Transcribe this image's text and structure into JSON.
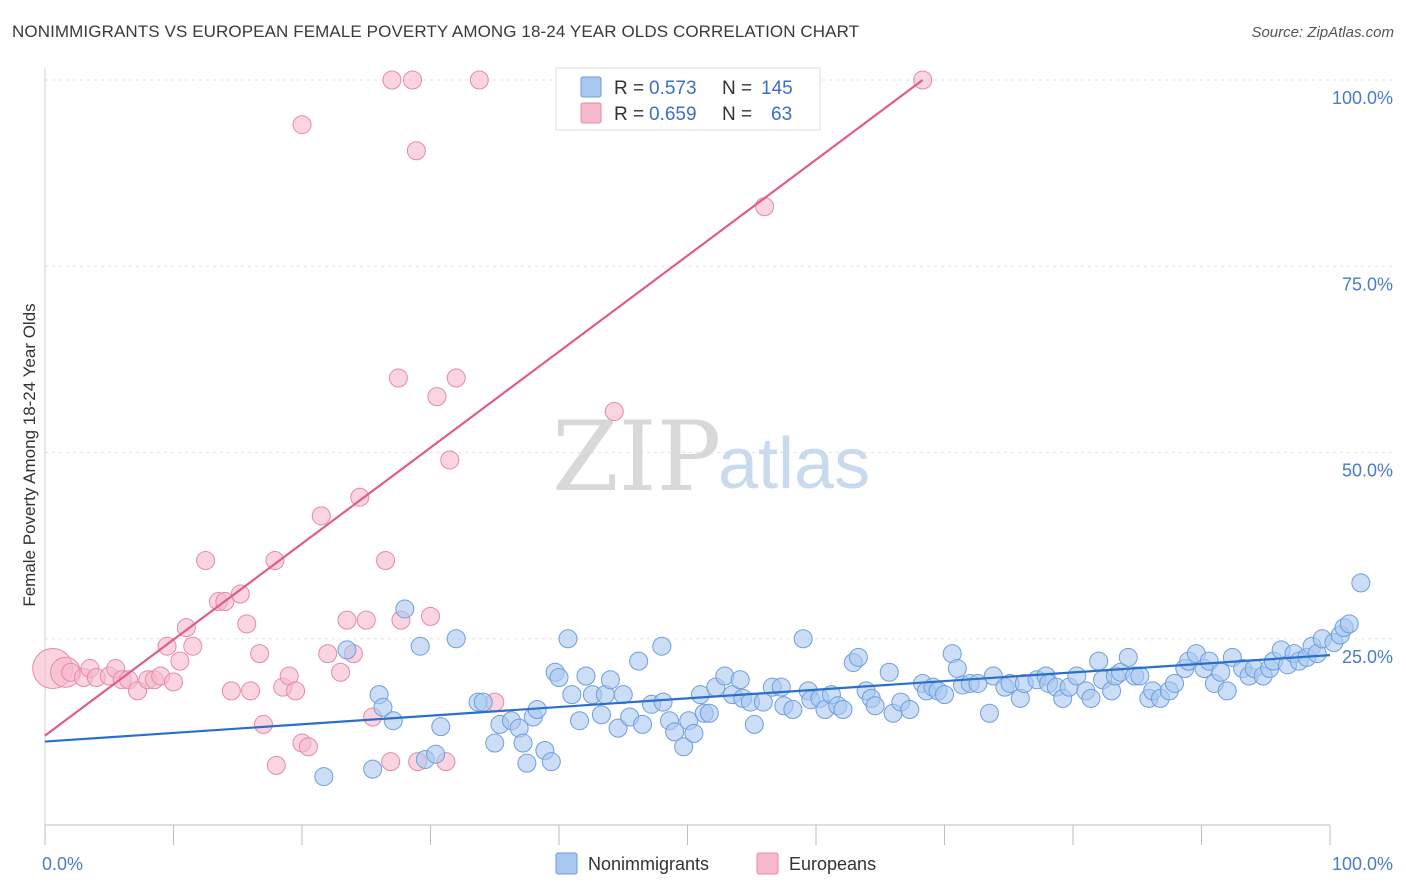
{
  "title": "NONIMMIGRANTS VS EUROPEAN FEMALE POVERTY AMONG 18-24 YEAR OLDS CORRELATION CHART",
  "source": "Source: ZipAtlas.com",
  "watermark": {
    "zip": "ZIP",
    "atlas": "atlas"
  },
  "legend": {
    "rows": [
      {
        "r_label": "R = ",
        "r_value": "0.573",
        "n_label": "N = ",
        "n_value": "145",
        "color": "#a9c8f0",
        "stroke": "#6f9ede"
      },
      {
        "r_label": "R = ",
        "r_value": "0.659",
        "n_label": "N = ",
        "n_value": "63",
        "color": "#f7b9cc",
        "stroke": "#e48aa8"
      }
    ]
  },
  "bottom_legend": [
    {
      "label": "Nonimmigrants",
      "color": "#a9c8f0",
      "stroke": "#6f9ede"
    },
    {
      "label": "Europeans",
      "color": "#f7b9cc",
      "stroke": "#e48aa8"
    }
  ],
  "chart_data": {
    "type": "scatter",
    "title": "NONIMMIGRANTS VS EUROPEAN FEMALE POVERTY AMONG 18-24 YEAR OLDS CORRELATION CHART",
    "xlabel": "",
    "ylabel": "Female Poverty Among 18-24 Year Olds",
    "xlim": [
      0,
      100
    ],
    "ylim": [
      0,
      100
    ],
    "x_ticks": [
      "0.0%",
      "100.0%"
    ],
    "y_ticks": [
      {
        "value": 25,
        "label": "25.0%"
      },
      {
        "value": 50,
        "label": "50.0%"
      },
      {
        "value": 75,
        "label": "75.0%"
      },
      {
        "value": 100,
        "label": "100.0%"
      }
    ],
    "grid": true,
    "legend_position": "top-center",
    "series": [
      {
        "name": "Nonimmigrants",
        "color": "#a9c8f0",
        "stroke": "#6f9ede",
        "trend": {
          "x": [
            0,
            100
          ],
          "y": [
            11.2,
            22.8
          ],
          "color": "#2a6fcc"
        },
        "points": [
          [
            21.7,
            6.5
          ],
          [
            23.5,
            23.5
          ],
          [
            25.5,
            7.5
          ],
          [
            26,
            17.5
          ],
          [
            26.3,
            15.8
          ],
          [
            27.1,
            14
          ],
          [
            28,
            29
          ],
          [
            29.6,
            8.8
          ],
          [
            29.2,
            24
          ],
          [
            30.4,
            9.5
          ],
          [
            30.8,
            13.2
          ],
          [
            32,
            25
          ],
          [
            33.7,
            16.5
          ],
          [
            34.1,
            16.5
          ],
          [
            35,
            11
          ],
          [
            35.4,
            13.5
          ],
          [
            36.3,
            14
          ],
          [
            36.9,
            13
          ],
          [
            37.2,
            11
          ],
          [
            37.5,
            8.3
          ],
          [
            38,
            14.5
          ],
          [
            38.3,
            15.5
          ],
          [
            38.9,
            10
          ],
          [
            39.4,
            8.5
          ],
          [
            39.7,
            20.5
          ],
          [
            40,
            19.8
          ],
          [
            40.7,
            25
          ],
          [
            41,
            17.5
          ],
          [
            41.6,
            14
          ],
          [
            42.1,
            20
          ],
          [
            42.6,
            17.5
          ],
          [
            43.3,
            14.8
          ],
          [
            43.6,
            17.5
          ],
          [
            44,
            19.5
          ],
          [
            44.6,
            13
          ],
          [
            45,
            17.5
          ],
          [
            45.5,
            14.5
          ],
          [
            46.2,
            22
          ],
          [
            46.5,
            13.5
          ],
          [
            47.2,
            16.2
          ],
          [
            48,
            24
          ],
          [
            48.1,
            16.5
          ],
          [
            48.6,
            14
          ],
          [
            49,
            12.5
          ],
          [
            49.7,
            10.5
          ],
          [
            50.1,
            14
          ],
          [
            50.5,
            12.3
          ],
          [
            51,
            17.5
          ],
          [
            51.3,
            15
          ],
          [
            51.7,
            15
          ],
          [
            52.2,
            18.5
          ],
          [
            52.9,
            20
          ],
          [
            53.5,
            17.5
          ],
          [
            54.1,
            19.5
          ],
          [
            54.3,
            17
          ],
          [
            54.9,
            16.5
          ],
          [
            55.2,
            13.5
          ],
          [
            55.9,
            16.5
          ],
          [
            56.6,
            18.5
          ],
          [
            57.3,
            18.5
          ],
          [
            57.5,
            16
          ],
          [
            58.2,
            15.5
          ],
          [
            59,
            25
          ],
          [
            59.4,
            18
          ],
          [
            59.6,
            16.8
          ],
          [
            60.3,
            17
          ],
          [
            60.7,
            15.5
          ],
          [
            61.2,
            17.5
          ],
          [
            61.7,
            16
          ],
          [
            62.1,
            15.5
          ],
          [
            62.9,
            21.8
          ],
          [
            63.3,
            22.5
          ],
          [
            63.9,
            18
          ],
          [
            64.3,
            17
          ],
          [
            64.6,
            16
          ],
          [
            65.7,
            20.5
          ],
          [
            66,
            15
          ],
          [
            66.6,
            16.5
          ],
          [
            67.3,
            15.5
          ],
          [
            68.3,
            19
          ],
          [
            68.6,
            18
          ],
          [
            69.1,
            18.5
          ],
          [
            69.5,
            18
          ],
          [
            70,
            17.5
          ],
          [
            70.6,
            23
          ],
          [
            71,
            21
          ],
          [
            71.4,
            18.8
          ],
          [
            72,
            19
          ],
          [
            72.6,
            19
          ],
          [
            73.5,
            15
          ],
          [
            73.8,
            20
          ],
          [
            74.7,
            18.5
          ],
          [
            75.1,
            19
          ],
          [
            75.9,
            17
          ],
          [
            76.2,
            19
          ],
          [
            77.2,
            19.5
          ],
          [
            77.9,
            20
          ],
          [
            78.1,
            19
          ],
          [
            78.7,
            18.5
          ],
          [
            79.2,
            17
          ],
          [
            79.7,
            18.5
          ],
          [
            80.3,
            20
          ],
          [
            81,
            18
          ],
          [
            81.4,
            17
          ],
          [
            82,
            22
          ],
          [
            82.3,
            19.5
          ],
          [
            83,
            18
          ],
          [
            83.3,
            20
          ],
          [
            83.7,
            20.5
          ],
          [
            84.3,
            22.5
          ],
          [
            84.8,
            20
          ],
          [
            85.2,
            20
          ],
          [
            85.9,
            17
          ],
          [
            86.2,
            18
          ],
          [
            86.8,
            17
          ],
          [
            87.5,
            18
          ],
          [
            87.9,
            19
          ],
          [
            88.7,
            21
          ],
          [
            89,
            22
          ],
          [
            89.6,
            23
          ],
          [
            90.2,
            21
          ],
          [
            90.6,
            22
          ],
          [
            91,
            19
          ],
          [
            91.5,
            20.5
          ],
          [
            92,
            18
          ],
          [
            92.4,
            22.5
          ],
          [
            93.2,
            21
          ],
          [
            93.7,
            20
          ],
          [
            94.1,
            21
          ],
          [
            94.8,
            20
          ],
          [
            95.3,
            21
          ],
          [
            95.6,
            22
          ],
          [
            96.2,
            23.5
          ],
          [
            96.7,
            21.5
          ],
          [
            97.2,
            23
          ],
          [
            97.6,
            22
          ],
          [
            98.2,
            22.5
          ],
          [
            98.6,
            24
          ],
          [
            99,
            23
          ],
          [
            99.4,
            25
          ],
          [
            100.3,
            24.5
          ],
          [
            100.8,
            25.5
          ],
          [
            101.1,
            26.5
          ],
          [
            101.5,
            27
          ],
          [
            102.4,
            32.5
          ]
        ]
      },
      {
        "name": "Europeans",
        "color": "#f7b9cc",
        "stroke": "#e48aa8",
        "trend": {
          "x": [
            0,
            68.3
          ],
          "y": [
            12,
            100
          ],
          "color": "#e05c8a"
        },
        "points": [
          [
            0.6,
            21
          ],
          [
            1.6,
            20.5
          ],
          [
            2,
            20.5
          ],
          [
            3,
            19.8
          ],
          [
            3.5,
            21
          ],
          [
            4,
            19.8
          ],
          [
            5,
            20
          ],
          [
            5.5,
            21
          ],
          [
            6,
            19.5
          ],
          [
            6.5,
            19.5
          ],
          [
            7.2,
            18
          ],
          [
            8,
            19.5
          ],
          [
            8.5,
            19.5
          ],
          [
            9,
            20
          ],
          [
            9.5,
            24
          ],
          [
            10,
            19.2
          ],
          [
            10.5,
            22
          ],
          [
            11,
            26.5
          ],
          [
            11.5,
            24
          ],
          [
            12.5,
            35.5
          ],
          [
            13.5,
            30
          ],
          [
            14,
            30
          ],
          [
            14.5,
            18
          ],
          [
            15.2,
            31
          ],
          [
            15.7,
            27
          ],
          [
            16,
            18
          ],
          [
            16.7,
            23
          ],
          [
            17,
            13.5
          ],
          [
            17.9,
            35.5
          ],
          [
            18,
            8
          ],
          [
            18.5,
            18.5
          ],
          [
            19,
            20
          ],
          [
            19.5,
            18
          ],
          [
            20,
            11
          ],
          [
            20.5,
            10.5
          ],
          [
            20,
            94
          ],
          [
            21.5,
            41.5
          ],
          [
            22,
            23
          ],
          [
            23,
            20.5
          ],
          [
            23.5,
            27.5
          ],
          [
            24,
            23
          ],
          [
            24.5,
            44
          ],
          [
            25,
            27.5
          ],
          [
            25.5,
            14.5
          ],
          [
            26.5,
            35.5
          ],
          [
            26.9,
            8.5
          ],
          [
            27,
            100
          ],
          [
            27.5,
            60
          ],
          [
            27.7,
            27.5
          ],
          [
            28.6,
            100
          ],
          [
            28.9,
            90.5
          ],
          [
            29,
            8.5
          ],
          [
            30,
            28
          ],
          [
            30.5,
            57.5
          ],
          [
            31.2,
            8.5
          ],
          [
            31.5,
            49
          ],
          [
            32,
            60
          ],
          [
            33.8,
            100
          ],
          [
            35,
            16.5
          ],
          [
            44.3,
            55.5
          ],
          [
            51,
            100
          ],
          [
            56,
            83
          ],
          [
            68.3,
            100
          ]
        ]
      }
    ]
  }
}
